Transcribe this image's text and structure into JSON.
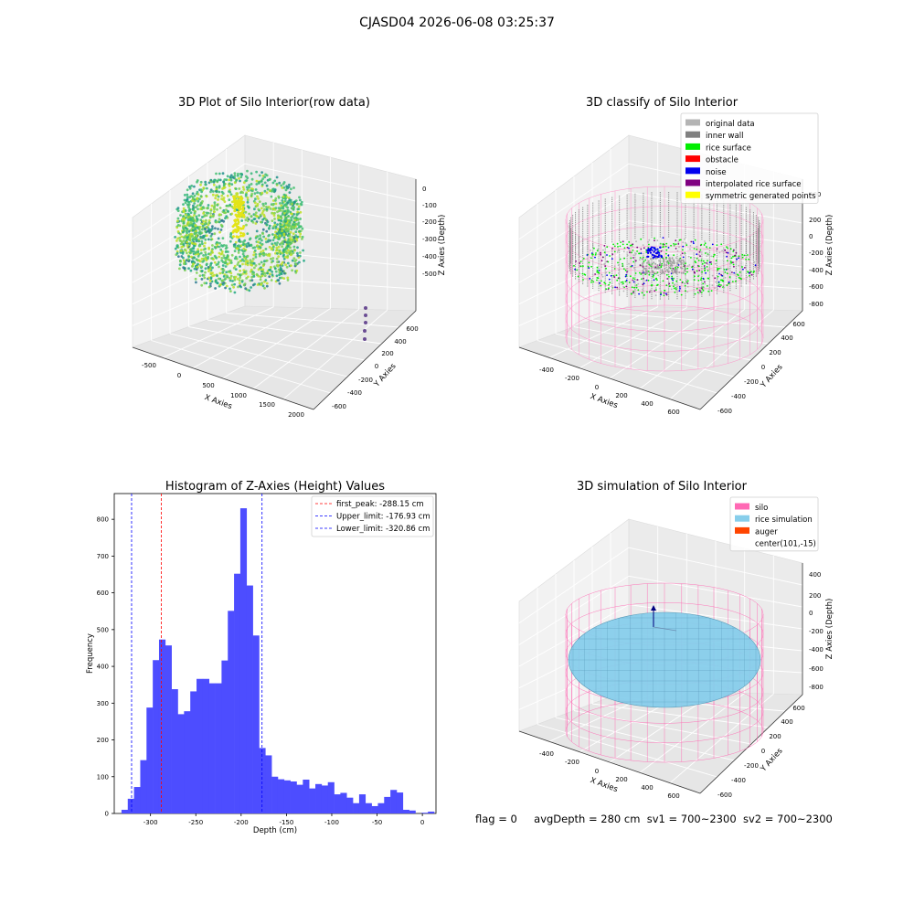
{
  "figure": {
    "suptitle": "CJASD04 2026-06-08 03:25:37",
    "status": {
      "flag": "flag = 0",
      "avg_depth": "avgDepth = 280 cm",
      "sv1": "sv1 = 700~2300",
      "sv2": "sv2 = 700~2300"
    }
  },
  "chart_data": [
    {
      "type": "scatter",
      "subtype": "3d-point-cloud",
      "title": "3D Plot of Silo Interior(row data)",
      "xlabel": "X Axies",
      "ylabel": "Y Axies",
      "zlabel": "Z Axies (Depth)",
      "x_ticks": [
        "-500",
        "0",
        "500",
        "1000",
        "1500",
        "2000"
      ],
      "y_ticks": [
        "-600",
        "-400",
        "-200",
        "0",
        "200",
        "400",
        "600"
      ],
      "z_ticks": [
        "0",
        "-100",
        "-200",
        "-300",
        "-400",
        "-500"
      ],
      "colormap": "viridis"
    },
    {
      "type": "scatter",
      "subtype": "3d-classification",
      "title": "3D classify of Silo Interior",
      "xlabel": "X Axies",
      "ylabel": "Y Axies",
      "zlabel": "Z Axies (Depth)",
      "x_ticks": [
        "-400",
        "-200",
        "0",
        "200",
        "400",
        "600"
      ],
      "y_ticks": [
        "-600",
        "-400",
        "-200",
        "0",
        "200",
        "400",
        "600"
      ],
      "z_ticks": [
        "400",
        "200",
        "0",
        "-200",
        "-400",
        "-600",
        "-800"
      ],
      "legend": [
        {
          "label": "original data",
          "color": "#b4b4b4"
        },
        {
          "label": "inner wall",
          "color": "#808080"
        },
        {
          "label": "rice surface",
          "color": "#00ee00"
        },
        {
          "label": "obstacle",
          "color": "#ff0000"
        },
        {
          "label": "noise",
          "color": "#0000ee"
        },
        {
          "label": "interpolated rice surface",
          "color": "#800080"
        },
        {
          "label": "symmetric generated points",
          "color": "#ffff00"
        }
      ],
      "legend_loc": "upper-right"
    },
    {
      "type": "bar",
      "subtype": "histogram",
      "title": "Histogram of Z-Axies (Height) Values",
      "xlabel": "Depth (cm)",
      "ylabel": "Frequency",
      "bar_color": "#4d4dff",
      "bin_width": 6.9,
      "bin_start": -332,
      "counts": [
        10,
        40,
        72,
        145,
        288,
        417,
        473,
        457,
        338,
        270,
        278,
        332,
        366,
        366,
        354,
        354,
        416,
        551,
        652,
        830,
        620,
        484,
        178,
        158,
        100,
        93,
        90,
        87,
        78,
        92,
        68,
        80,
        76,
        85,
        52,
        56,
        43,
        28,
        52,
        28,
        20,
        28,
        45,
        64,
        57,
        10,
        8,
        0,
        2,
        5,
        0
      ],
      "xlim": [
        -340,
        15
      ],
      "ylim": [
        0,
        870
      ],
      "x_ticks": [
        "-300",
        "-250",
        "-200",
        "-150",
        "-100",
        "-50",
        "0"
      ],
      "y_ticks": [
        "0",
        "100",
        "200",
        "300",
        "400",
        "500",
        "600",
        "700",
        "800"
      ],
      "vlines": [
        {
          "label": "first_peak: -288.15 cm",
          "x": -288.15,
          "color": "#ff0000"
        },
        {
          "label": "Upper_limit: -176.93 cm",
          "x": -176.93,
          "color": "#0000ff"
        },
        {
          "label": "Lower_limit: -320.86 cm",
          "x": -320.86,
          "color": "#0000ff"
        }
      ],
      "legend_loc": "upper-right"
    },
    {
      "type": "scatter",
      "subtype": "3d-simulation",
      "title": "3D simulation of Silo Interior",
      "xlabel": "X Axies",
      "ylabel": "Y Axies",
      "zlabel": "Z Axies (Depth)",
      "x_ticks": [
        "-400",
        "-200",
        "0",
        "200",
        "400",
        "600"
      ],
      "y_ticks": [
        "-600",
        "-400",
        "-200",
        "0",
        "200",
        "400",
        "600"
      ],
      "z_ticks": [
        "400",
        "200",
        "0",
        "-200",
        "-400",
        "-600",
        "-800"
      ],
      "legend": [
        {
          "label": "silo",
          "color": "#ff69b4"
        },
        {
          "label": "rice simulation",
          "color": "#87ceeb"
        },
        {
          "label": "auger",
          "color": "#ff4500"
        },
        {
          "label": "center(101,-15)",
          "color": ""
        }
      ],
      "legend_loc": "upper-right"
    }
  ]
}
